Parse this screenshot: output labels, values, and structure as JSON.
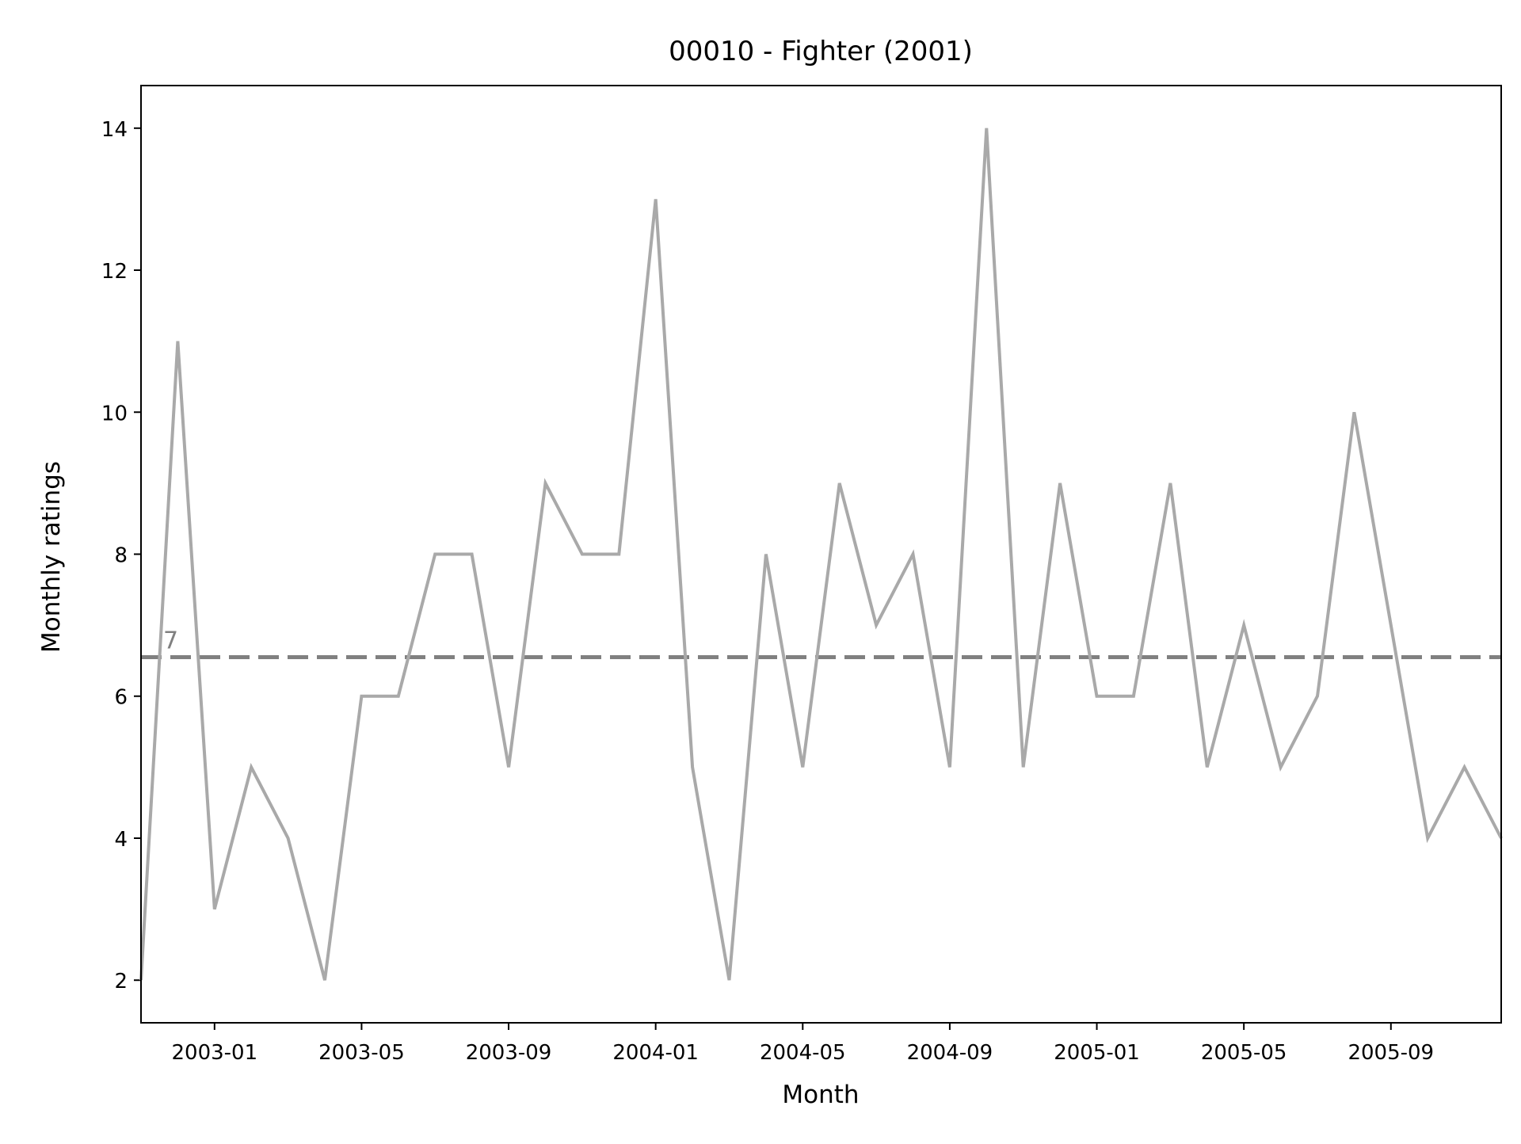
{
  "chart_data": {
    "type": "line",
    "title": "00010 - Fighter (2001)",
    "xlabel": "Month",
    "ylabel": "Monthly ratings",
    "x": [
      "2002-11",
      "2002-12",
      "2003-01",
      "2003-02",
      "2003-03",
      "2003-04",
      "2003-05",
      "2003-06",
      "2003-07",
      "2003-08",
      "2003-09",
      "2003-10",
      "2003-11",
      "2003-12",
      "2004-01",
      "2004-02",
      "2004-03",
      "2004-04",
      "2004-05",
      "2004-06",
      "2004-07",
      "2004-08",
      "2004-09",
      "2004-10",
      "2004-11",
      "2004-12",
      "2005-01",
      "2005-02",
      "2005-03",
      "2005-04",
      "2005-05",
      "2005-06",
      "2005-07",
      "2005-08",
      "2005-09",
      "2005-10",
      "2005-11",
      "2005-12"
    ],
    "series": [
      {
        "values": [
          2,
          11,
          3,
          5,
          4,
          2,
          6,
          6,
          8,
          8,
          5,
          9,
          8,
          8,
          13,
          5,
          2,
          8,
          5,
          9,
          7,
          8,
          5,
          14,
          5,
          9,
          6,
          6,
          9,
          5,
          7,
          5,
          6,
          10,
          7,
          4,
          5,
          4
        ],
        "color": "#a9a9a9"
      }
    ],
    "reference_line": {
      "value": 6.55,
      "label": "7",
      "color": "#808080",
      "style": "dashed"
    },
    "x_ticks": [
      "2003-01",
      "2003-05",
      "2003-09",
      "2004-01",
      "2004-05",
      "2004-09",
      "2005-01",
      "2005-05",
      "2005-09"
    ],
    "y_ticks": [
      2,
      4,
      6,
      8,
      10,
      12,
      14
    ],
    "xlim": [
      "2002-11",
      "2005-12"
    ],
    "ylim": [
      1.4,
      14.6
    ],
    "grid": false,
    "legend": "none"
  }
}
